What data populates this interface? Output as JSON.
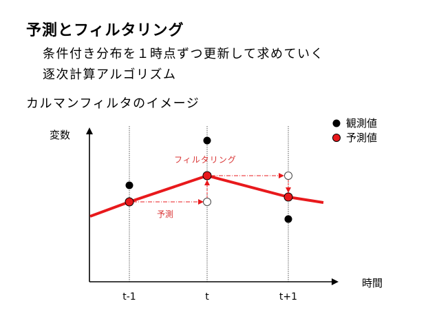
{
  "slide": {
    "title": "予測とフィルタリング",
    "subtitle_line1": "条件付き分布を１時点ずつ更新して求めていく",
    "subtitle_line2": "逐次計算アルゴリズム",
    "section_heading": "カルマンフィルタのイメージ"
  },
  "diagram": {
    "y_axis_label": "変数",
    "x_axis_label": "時間",
    "time_labels": [
      "t-1",
      "t",
      "t+1"
    ],
    "legend": {
      "observed": "観測値",
      "predicted": "予測値"
    },
    "annotations": {
      "prediction": "予測",
      "filtering": "フィルタリング"
    },
    "colors": {
      "estimate_line": "#e8191c",
      "annotation_arrow": "#e8191c",
      "annotation_text": "#d93333",
      "observed_marker": "#000000",
      "predicted_marker": "#e8191c"
    }
  }
}
